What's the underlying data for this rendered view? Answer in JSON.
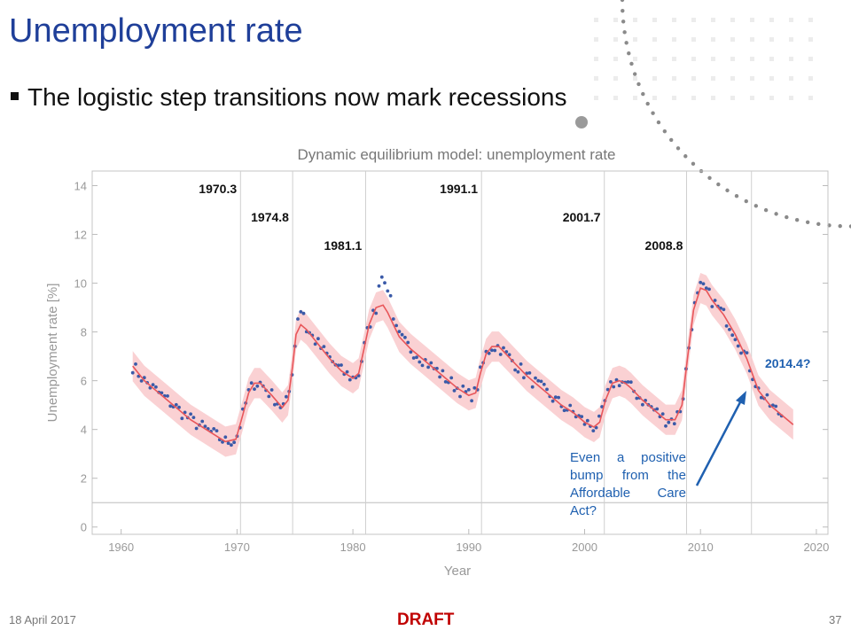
{
  "slide": {
    "title": "Unemployment rate",
    "bullet": "The logistic step transitions now mark recessions",
    "footer_date": "18 April 2017",
    "footer_draft": "DRAFT",
    "page_number": "37"
  },
  "annotation": {
    "note": "Even a positive bump from the Affordable Care Act?",
    "future_label": "2014.4?"
  },
  "colors": {
    "title": "#1f3f99",
    "data_points": "#3a5aa8",
    "model_line": "#e8565a",
    "model_band": "#f9c9cb",
    "annotation": "#1f60b0",
    "draft": "#c00000"
  },
  "chart_data": {
    "type": "scatter",
    "title": "Dynamic equilibrium model: unemployment rate",
    "xlabel": "Year",
    "ylabel": "Unemployment rate [%]",
    "xlim": [
      1957.5,
      2021
    ],
    "ylim": [
      -0.3,
      14.6
    ],
    "xticks": [
      1960,
      1970,
      1980,
      1990,
      2000,
      2010,
      2020
    ],
    "yticks": [
      0,
      2,
      4,
      6,
      8,
      10,
      12,
      14
    ],
    "grid": false,
    "reference_line_y": 1.0,
    "recessions": [
      {
        "label": "1970.3",
        "x": 1970.3
      },
      {
        "label": "1974.8",
        "x": 1974.8
      },
      {
        "label": "1981.1",
        "x": 1981.1
      },
      {
        "label": "1991.1",
        "x": 1991.1
      },
      {
        "label": "2001.7",
        "x": 2001.7
      },
      {
        "label": "2008.8",
        "x": 2008.8
      },
      {
        "label": "2014.4?",
        "x": 2014.4
      }
    ],
    "series": [
      {
        "type": "line",
        "x": [
          1961.0,
          1962.0,
          1963.0,
          1964.0,
          1965.0,
          1966.0,
          1967.0,
          1968.0,
          1969.0,
          1969.9,
          1970.5,
          1971.0,
          1971.5,
          1972.0,
          1973.0,
          1973.9,
          1974.4,
          1974.8,
          1975.1,
          1975.5,
          1976.0,
          1977.0,
          1978.0,
          1979.0,
          1980.0,
          1980.5,
          1981.0,
          1981.4,
          1982.0,
          1982.6,
          1983.0,
          1983.5,
          1984.0,
          1985.0,
          1986.0,
          1987.0,
          1988.0,
          1989.0,
          1990.0,
          1990.6,
          1991.0,
          1991.5,
          1992.0,
          1992.6,
          1993.0,
          1994.0,
          1995.0,
          1996.0,
          1997.0,
          1998.0,
          1999.0,
          2000.0,
          2000.8,
          2001.3,
          2001.8,
          2002.4,
          2003.0,
          2003.5,
          2004.0,
          2005.0,
          2006.0,
          2007.0,
          2007.8,
          2008.4,
          2008.9,
          2009.4,
          2010.0,
          2010.5,
          2011.0,
          2012.0,
          2013.0,
          2014.0,
          2015.0,
          2016.0,
          2017.0,
          2018.0
        ],
        "values": [
          6.6,
          6.0,
          5.6,
          5.2,
          4.8,
          4.4,
          4.1,
          3.8,
          3.5,
          3.6,
          4.6,
          5.5,
          5.9,
          5.9,
          5.4,
          4.9,
          5.2,
          6.6,
          7.9,
          8.3,
          8.1,
          7.5,
          6.9,
          6.4,
          6.1,
          6.3,
          7.4,
          8.3,
          9.0,
          9.1,
          8.8,
          8.3,
          7.8,
          7.3,
          6.9,
          6.5,
          6.1,
          5.7,
          5.4,
          5.5,
          6.3,
          7.1,
          7.4,
          7.4,
          7.2,
          6.7,
          6.2,
          5.8,
          5.4,
          5.0,
          4.7,
          4.3,
          4.1,
          4.3,
          5.2,
          5.9,
          6.0,
          5.9,
          5.7,
          5.2,
          4.8,
          4.4,
          4.4,
          5.0,
          7.0,
          8.9,
          9.8,
          9.7,
          9.3,
          8.7,
          7.9,
          6.9,
          5.6,
          5.0,
          4.6,
          4.2
        ]
      }
    ]
  }
}
